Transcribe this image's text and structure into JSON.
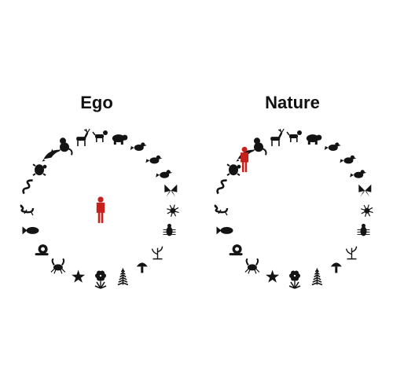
{
  "panels": {
    "ego": {
      "title": "Ego",
      "human_placement": "center"
    },
    "nature": {
      "title": "Nature",
      "human_placement": "on-circle"
    }
  },
  "colors": {
    "human": "#c8201c",
    "creatures": "#141414"
  },
  "ring_icons": [
    "monkey-icon",
    "deer-icon",
    "dog-icon",
    "bear-icon",
    "bird-icon",
    "bird-icon",
    "bird-icon",
    "butterfly-icon",
    "spider-icon",
    "beetle-icon",
    "plant-icon",
    "mushroom-icon",
    "fern-icon",
    "flower-icon",
    "star-icon",
    "crab-icon",
    "snail-icon",
    "fish-icon",
    "lizard-icon",
    "snake-icon",
    "turtle-icon",
    "dolphin-icon"
  ]
}
